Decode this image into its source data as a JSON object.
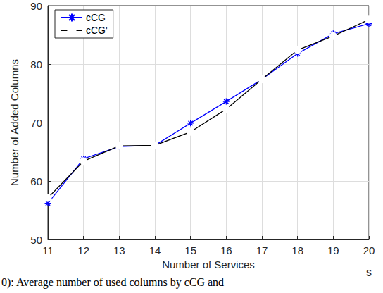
{
  "chart_data": {
    "type": "line",
    "x_label": "Number of Services",
    "y_label": "Number of Added Columns",
    "x": [
      11,
      12,
      13,
      14,
      15,
      16,
      17,
      18,
      19,
      20
    ],
    "series": [
      {
        "name": "cCG",
        "color": "#0000ff",
        "marker": "asterisk",
        "line_style": "solid",
        "values": [
          56.2,
          63.8,
          65.9,
          66.1,
          69.9,
          73.6,
          77.4,
          81.8,
          85.2,
          86.9
        ]
      },
      {
        "name": "cCG'",
        "color": "#000000",
        "marker": "circle",
        "line_style": "solid",
        "values": [
          57.1,
          63.4,
          66.0,
          66.1,
          68.4,
          72.3,
          77.4,
          82.4,
          84.8,
          87.6
        ]
      }
    ],
    "xlim": [
      11,
      20
    ],
    "xticks": [
      11,
      12,
      13,
      14,
      15,
      16,
      17,
      18,
      19,
      20
    ],
    "ylim": [
      50,
      90
    ],
    "yticks": [
      50,
      60,
      70,
      80,
      90
    ],
    "grid": true,
    "legend": "upper left",
    "annotations": [
      "s"
    ],
    "caption": "0): Average number of used columns by cCG and"
  }
}
